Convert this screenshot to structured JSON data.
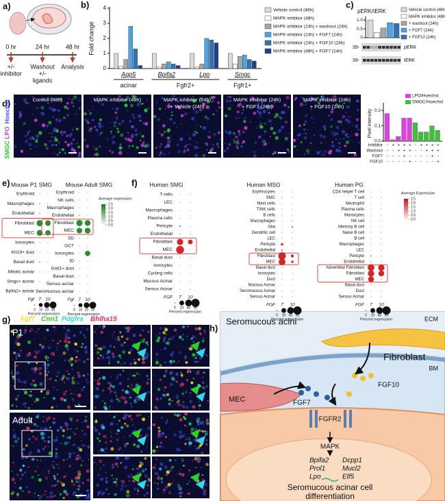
{
  "a": {
    "label": "a)",
    "times": [
      "0 hr",
      "24 hr",
      "48 hr"
    ],
    "events": [
      [
        "+/-",
        "inhibitor"
      ],
      [
        "Washout",
        "+/-",
        "ligands"
      ],
      [
        "Analysis"
      ]
    ]
  },
  "b": {
    "label": "b)",
    "y_label": "Fold change",
    "categories": [
      "Aqp5",
      "Bpifa2",
      "Lpo",
      "Smgc"
    ],
    "groups": [
      "acinar",
      "Fgfr2+",
      "Fgfr1+"
    ],
    "ylim": [
      0,
      4
    ],
    "yticks": [
      0,
      1,
      2,
      3,
      4
    ],
    "series": [
      {
        "name": "Vehicle control (48h)",
        "color": "#d9d9d9",
        "values": [
          1.0,
          1.0,
          1.0,
          1.0
        ]
      },
      {
        "name": "MAPK inhibitor (48h)",
        "color": "#ffffff",
        "values": [
          0.15,
          0.1,
          0.1,
          0.3
        ]
      },
      {
        "name": "MAPK inhibitor (24h) + washout (24h)",
        "color": "#a6a6a6",
        "values": [
          0.6,
          0.3,
          0.3,
          0.8
        ]
      },
      {
        "name": "MAPK inhibitor (24h) + FGF7 (24h)",
        "color": "#4fa3e0",
        "values": [
          2.8,
          0.45,
          2.0,
          0.9
        ]
      },
      {
        "name": "MAPK inhibitor (24h) + FGF10 (24h)",
        "color": "#2e75b6",
        "values": [
          1.3,
          0.3,
          1.9,
          0.6
        ]
      },
      {
        "name": "MAPK inhibitor (48h) + FGF7 (24h)",
        "color": "#1f3f8f",
        "values": [
          0.2,
          0.2,
          1.7,
          0.5
        ]
      }
    ]
  },
  "c": {
    "label": "c)",
    "title": "pERK/tERK",
    "ylim": [
      0,
      1.2
    ],
    "yticks": [
      0,
      0.5,
      {
        "value": 1,
        "label": "1.0"
      }
    ],
    "series": [
      {
        "name": "Vehicle control (48h)",
        "color": "#d9d9d9",
        "value": 1.0
      },
      {
        "name": "MAPK inhibitor (48h)",
        "color": "#ffffff",
        "value": 0.3
      },
      {
        "name": "+ washout (24h)",
        "color": "#a6a6a6",
        "value": 0.55
      },
      {
        "name": "+ FGF7 (24h)",
        "color": "#4fa3e0",
        "value": 0.85
      },
      {
        "name": "+ FGF10 (24h)",
        "color": "#2e75b6",
        "value": 0.8
      }
    ],
    "blot_labels": [
      "pERK",
      "tERK"
    ],
    "markers": [
      "39-",
      "39-"
    ]
  },
  "d": {
    "label": "d)",
    "channels": [
      "SMGC",
      "LPO",
      "Hoechst"
    ],
    "images": [
      [
        "Control (48h)"
      ],
      [
        "MAPK inhibitor (48h)"
      ],
      [
        "MAPK inhibitor (24h)",
        "+ Vehicle (24h)"
      ],
      [
        "MAPK inhibitor (24h)",
        "+ FGF7 (24h)"
      ],
      [
        "MAPK inhibitor (24h)",
        "+ FGF10 (24h)"
      ]
    ],
    "chart": {
      "y_label": "Pixel intensity",
      "ylim": [
        0,
        0.25
      ],
      "yticks": [
        {
          "value": 0,
          "label": "0.0"
        },
        0.1,
        0.2
      ],
      "series": [
        {
          "name": "LPO/Hoechst",
          "color": "#e040e0",
          "values": [
            0.18,
            0.01,
            0.03,
            0.15,
            0.15
          ]
        },
        {
          "name": "SMGC/Hoechst",
          "color": "#3cc13c",
          "values": [
            0.12,
            0.06,
            0.06,
            0.1,
            0.07
          ]
        }
      ],
      "rows": [
        {
          "name": "Inhibitor",
          "signs": [
            "-",
            "+",
            "+",
            "+",
            "+"
          ]
        },
        {
          "name": "Washout",
          "signs": [
            "-",
            "-",
            "+",
            "+",
            "+"
          ]
        },
        {
          "name": "FGF7",
          "signs": [
            "-",
            "-",
            "-",
            "+",
            "-"
          ]
        },
        {
          "name": "FGF10",
          "signs": [
            "-",
            "-",
            "-",
            "-",
            "+"
          ]
        }
      ]
    }
  },
  "e": {
    "label": "e)",
    "plots": [
      {
        "title": "Mouse P1 SMG",
        "x_label": "Fgf",
        "columns": [
          7,
          10
        ],
        "color": "#2e8b2e",
        "rows": [
          "Erythroid",
          "Macrophages",
          "Endothelial",
          "Fibroblast",
          "MEC",
          "Ionocytes",
          "Krt19+ duct",
          "Basal duct",
          "Mitotic acinar",
          "Smgc+ acinar",
          "Bpifa2+ acinar"
        ],
        "pct": [
          [
            0,
            0
          ],
          [
            1,
            0
          ],
          [
            1,
            0
          ],
          [
            25,
            20
          ],
          [
            22,
            18
          ],
          [
            0,
            0
          ],
          [
            0,
            0
          ],
          [
            1,
            0
          ],
          [
            0,
            0
          ],
          [
            0,
            0
          ],
          [
            0,
            0
          ]
        ],
        "size_legend": {
          "title": "Percent expression",
          "values": [
            0,
            10,
            20,
            30
          ]
        }
      },
      {
        "title": "Mouse Adult SMG",
        "x_label": "Fgf",
        "columns": [
          7,
          10
        ],
        "color": "#2e8b2e",
        "rows": [
          "Erythroid",
          "NK cells",
          "Macrophages",
          "Endothelial",
          "Fibroblast",
          "MEC",
          "SD",
          "GCT",
          "Ionocytes",
          "ID",
          "Gstt1+ duct",
          "Basal duct",
          "Serous acinar",
          "Seromucous acinar"
        ],
        "pct": [
          [
            0,
            0
          ],
          [
            0,
            0
          ],
          [
            0,
            0
          ],
          [
            1,
            0
          ],
          [
            25,
            22
          ],
          [
            20,
            22
          ],
          [
            0,
            0
          ],
          [
            0,
            0
          ],
          [
            0,
            18
          ],
          [
            0,
            0
          ],
          [
            0,
            0
          ],
          [
            0,
            0
          ],
          [
            0,
            0
          ],
          [
            0,
            0
          ]
        ],
        "size_legend": {
          "title": "Percent expression",
          "values": [
            0,
            10,
            20,
            30
          ]
        },
        "color_legend": {
          "title": "Average expression",
          "ticks": [
            2.5,
            {
              "value": 2,
              "label": "2.0"
            },
            1.5,
            {
              "value": 1,
              "label": "1.0"
            },
            0.5,
            {
              "value": 0,
              "label": "0.0"
            }
          ]
        }
      }
    ]
  },
  "f": {
    "label": "f)",
    "plots": [
      {
        "title": "Human SMG",
        "x_label": "FGF",
        "columns": [
          7,
          10
        ],
        "color": "#d62728",
        "rows": [
          "T cells",
          "LEC",
          "Macrophages",
          "Plasma cells",
          "Pericyte",
          "Endothelial",
          "Fibroblast",
          "MEC",
          "Basal duct",
          "Ionocytes",
          "Cycling cells",
          "Mucous Acinar",
          "Serous Acinar"
        ],
        "pct": [
          [
            0,
            0
          ],
          [
            0,
            0
          ],
          [
            0,
            0
          ],
          [
            0,
            0
          ],
          [
            3,
            0
          ],
          [
            1,
            0
          ],
          [
            35,
            20
          ],
          [
            55,
            0
          ],
          [
            1,
            0
          ],
          [
            0,
            0
          ],
          [
            0,
            0
          ],
          [
            0,
            0
          ],
          [
            0,
            0
          ]
        ],
        "size_legend": {
          "title": "Percent expression",
          "values": [
            0,
            20,
            40,
            60
          ]
        }
      },
      {
        "title": "Human MSG",
        "x_label": "FGF",
        "columns": [
          7,
          10
        ],
        "color": "#d62728",
        "rows": [
          "Erythrocytes",
          "SMC",
          "Mast cells",
          "T/NK cells",
          "B cells",
          "Macrophages",
          "Glia",
          "Dendritic cell",
          "LEC",
          "Pericyte",
          "Endothelial",
          "Fibroblast",
          "MEC",
          "Basal duct",
          "Ionocytes",
          "Duct",
          "Mucous Acinar",
          "Seromucous Acinar",
          "Serous Acinar"
        ],
        "pct": [
          [
            0,
            0
          ],
          [
            1,
            0
          ],
          [
            0,
            0
          ],
          [
            0,
            0
          ],
          [
            0,
            0
          ],
          [
            0,
            0
          ],
          [
            0,
            3
          ],
          [
            0,
            0
          ],
          [
            0,
            0
          ],
          [
            5,
            0
          ],
          [
            3,
            0
          ],
          [
            50,
            8
          ],
          [
            40,
            5
          ],
          [
            1,
            0
          ],
          [
            0,
            0
          ],
          [
            0,
            0
          ],
          [
            0,
            0
          ],
          [
            0,
            0
          ],
          [
            0,
            0
          ]
        ],
        "size_legend": {
          "title": "Percent expression",
          "values": [
            0,
            20,
            40,
            60
          ]
        }
      },
      {
        "title": "Human PG",
        "x_label": "FGF",
        "columns": [
          7,
          10
        ],
        "color": "#d62728",
        "rows": [
          "CD4 helper T cell",
          "T cell",
          "Neutrophil",
          "Plasma cells",
          "Monocytes",
          "NK cell",
          "Memory B cell",
          "Naive B cell",
          "B cell",
          "Macrophages",
          "LEC",
          "Pericyte",
          "Endothelial",
          "Adventitial Fibroblast",
          "Fibroblast",
          "MEC",
          "Basal duct",
          "Duct",
          "Serous Acinar"
        ],
        "pct": [
          [
            0,
            0
          ],
          [
            0,
            0
          ],
          [
            0,
            0
          ],
          [
            0,
            0
          ],
          [
            0,
            0
          ],
          [
            0,
            0
          ],
          [
            0,
            0
          ],
          [
            0,
            0
          ],
          [
            0,
            0
          ],
          [
            0,
            0
          ],
          [
            0,
            0
          ],
          [
            2,
            0
          ],
          [
            1,
            0
          ],
          [
            40,
            35
          ],
          [
            35,
            30
          ],
          [
            30,
            0
          ],
          [
            0,
            0
          ],
          [
            0,
            0
          ],
          [
            0,
            0
          ]
        ],
        "size_legend": {
          "title": "Percent expression",
          "values": [
            0,
            20,
            40,
            60
          ]
        },
        "color_legend": {
          "title": "Average Expression",
          "ticks": [
            2.5,
            {
              "value": 2,
              "label": "2.0"
            },
            1.5,
            {
              "value": 1,
              "label": "1.0"
            },
            0.5,
            {
              "value": 0,
              "label": "0.0"
            }
          ]
        }
      }
    ]
  },
  "g": {
    "label": "g)",
    "channels": [
      "Fgf7",
      "Cnn1",
      "Pdgfra",
      "Bhlha15"
    ],
    "samples": [
      "P1",
      "Adult"
    ]
  },
  "h": {
    "label": "h)",
    "title": "Seromucous acini",
    "ecm": "ECM",
    "fibroblast": "Fibroblast",
    "bm": "BM",
    "mec": "MEC",
    "ligands": [
      "FGF7",
      "FGF10"
    ],
    "receptor": "FGFR2",
    "kinase": "MAPK",
    "genes": [
      [
        "Bpifa2",
        "Prol1",
        "Lpo"
      ],
      [
        "Dcpp1",
        "Mucl2",
        "Elf5"
      ]
    ],
    "outcome": [
      "Seromucous acinar cell",
      "differentiation"
    ]
  }
}
